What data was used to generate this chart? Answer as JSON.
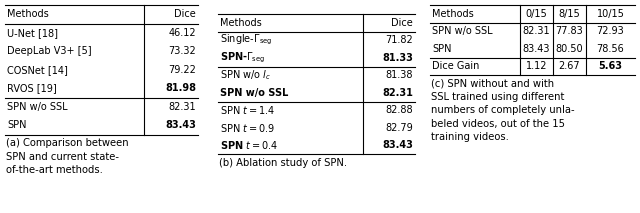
{
  "bg_color": "#ffffff",
  "font_size": 7.0,
  "caption_font_size": 7.2,
  "table_a": {
    "headers": [
      "Methods",
      "Dice"
    ],
    "col_split": 0.72,
    "rows": [
      [
        "U-Net [18]",
        "46.12",
        false,
        false
      ],
      [
        "DeepLab V3+ [5]",
        "73.32",
        false,
        false
      ],
      [
        "COSNet [14]",
        "79.22",
        false,
        false
      ],
      [
        "RVOS [19]",
        "81.98",
        false,
        true
      ],
      [
        "SPN w/o SSL",
        "82.31",
        false,
        false
      ],
      [
        "SPN",
        "83.43",
        false,
        true
      ]
    ],
    "divider_after": [
      3
    ],
    "caption": "(a) Comparison between\nSPN and current state-\nof-the-art methods."
  },
  "table_b": {
    "headers": [
      "Methods",
      "Dice"
    ],
    "col_split": 0.735,
    "rows_math": [
      [
        "Single-$\\Gamma_{\\mathrm{seg}}$",
        "71.82",
        false,
        false
      ],
      [
        "SPN-$\\Gamma_{\\mathrm{seg}}$",
        "81.33",
        true,
        true
      ],
      [
        "SPN w/o $l_c$",
        "81.38",
        false,
        false
      ],
      [
        "SPN w/o SSL",
        "82.31",
        true,
        true
      ],
      [
        "SPN $t = 1.4$",
        "82.88",
        false,
        false
      ],
      [
        "SPN $t = 0.9$",
        "82.79",
        false,
        false
      ],
      [
        "SPN $t = 0.4$",
        "83.43",
        true,
        true
      ]
    ],
    "divider_after": [
      1,
      3
    ],
    "caption": "(b) Ablation study of SPN."
  },
  "table_c": {
    "headers": [
      "Methods",
      "0/15",
      "8/15",
      "10/15"
    ],
    "col_splits": [
      0.44,
      0.6,
      0.76
    ],
    "rows": [
      [
        "SPN w/o SSL",
        "82.31",
        "77.83",
        "72.93",
        false,
        false,
        false,
        false
      ],
      [
        "SPN",
        "83.43",
        "80.50",
        "78.56",
        false,
        false,
        false,
        false
      ],
      [
        "Dice Gain",
        "1.12",
        "2.67",
        "5.63",
        false,
        false,
        false,
        true
      ]
    ],
    "divider_after": [
      1
    ],
    "caption": "(c) SPN without and with\nSSL trained using different\nnumbers of completely unla-\nbeled videos, out of the 15\ntraining videos."
  }
}
